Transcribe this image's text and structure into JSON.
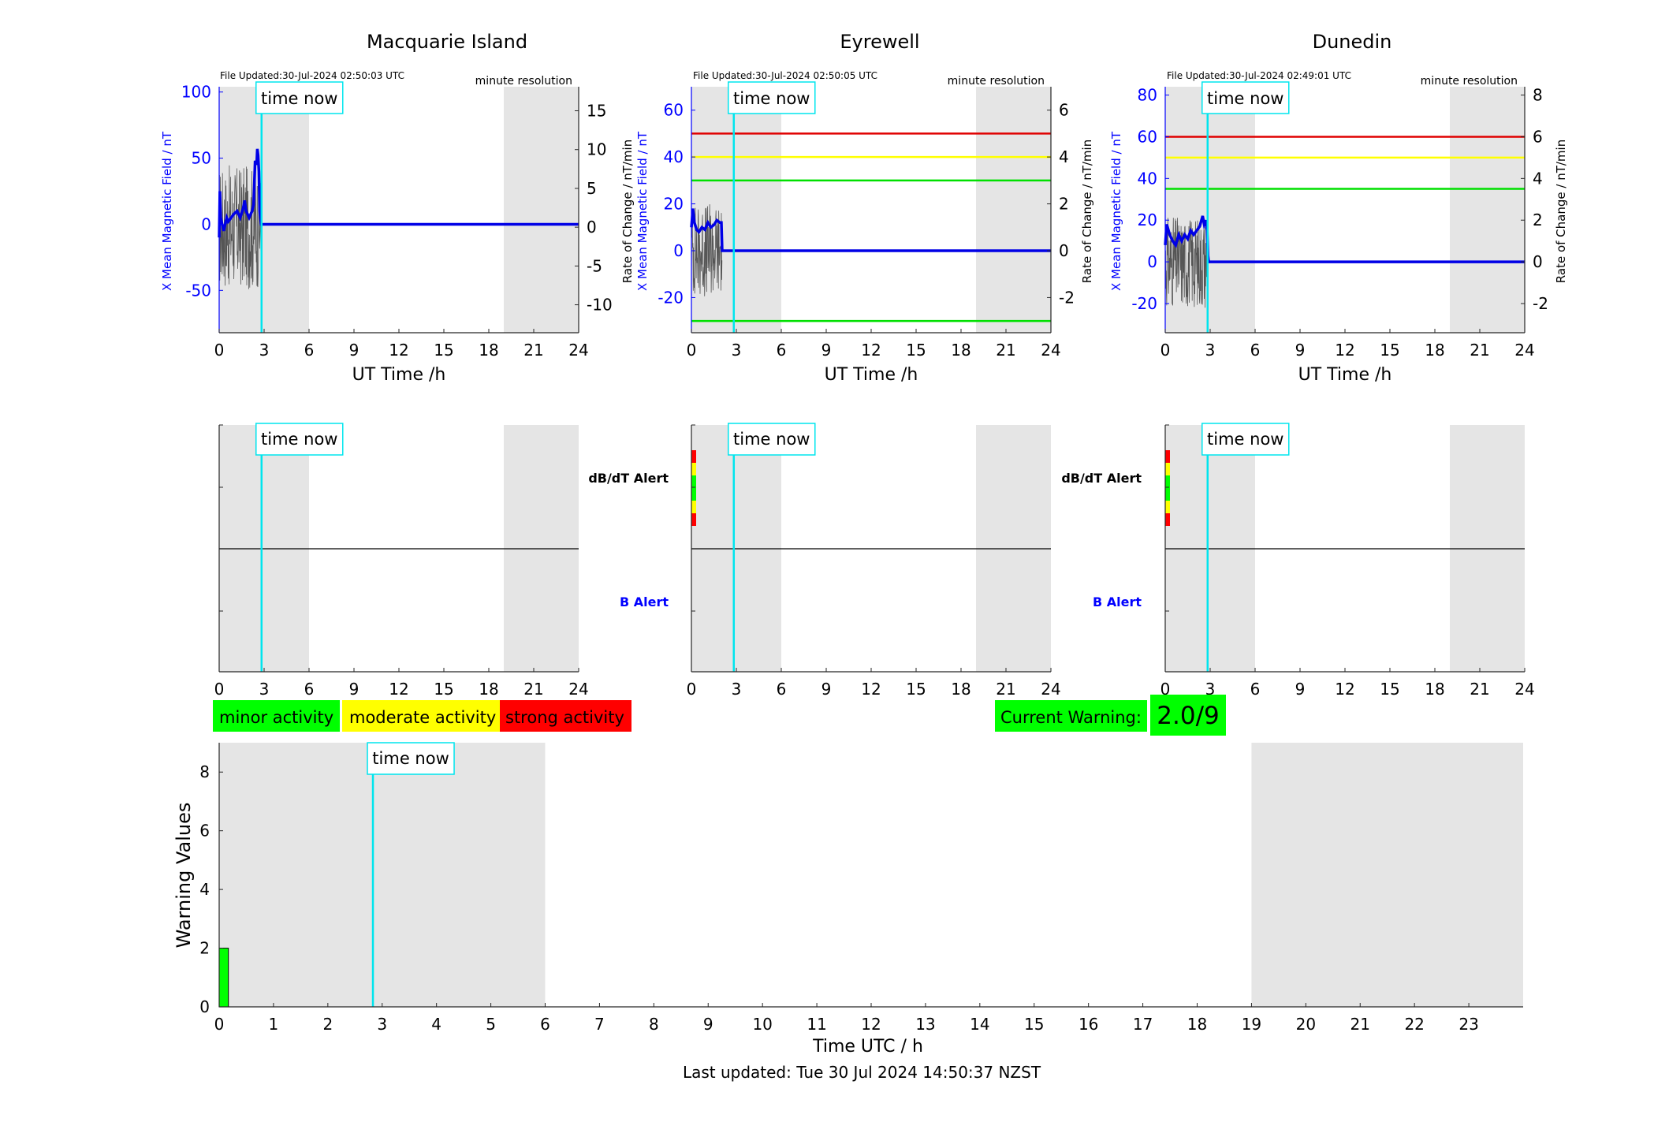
{
  "stations": [
    {
      "name": "Macquarie Island",
      "file_updated": "File Updated:30-Jul-2024 02:50:03 UTC",
      "resolution": "minute resolution",
      "left_ylabel": "X Mean Magnetic Field / nT",
      "right_ylabel": "Rate of Change / nT/min",
      "xlabel": "UT Time /h",
      "left_ylim": [
        -82,
        104
      ],
      "left_ticks": [
        -50,
        0,
        50,
        100
      ],
      "right_ylim": [
        -13.6,
        18.1
      ],
      "right_ticks": [
        -10,
        -5,
        0,
        5,
        10,
        15
      ],
      "thresholds": [],
      "has_alert_bar": false
    },
    {
      "name": "Eyrewell",
      "file_updated": "File Updated:30-Jul-2024 02:50:05 UTC",
      "resolution": "minute resolution",
      "left_ylabel": "X Mean Magnetic Field / nT",
      "right_ylabel": "Rate of Change / nT/min",
      "xlabel": "UT Time /h",
      "left_ylim": [
        -35,
        70
      ],
      "left_ticks": [
        -20,
        0,
        20,
        40,
        60
      ],
      "right_ylim": [
        -3.5,
        7
      ],
      "right_ticks": [
        -2,
        0,
        2,
        4,
        6
      ],
      "thresholds": [
        {
          "value": 50,
          "color": "#e00000"
        },
        {
          "value": 40,
          "color": "#ffff00"
        },
        {
          "value": 30,
          "color": "#00e000"
        },
        {
          "value": -30,
          "color": "#00e000"
        }
      ],
      "has_alert_bar": true
    },
    {
      "name": "Dunedin",
      "file_updated": "File Updated:30-Jul-2024 02:49:01 UTC",
      "resolution": "minute resolution",
      "left_ylabel": "X Mean Magnetic Field / nT",
      "right_ylabel": "Rate of Change / nT/min",
      "xlabel": "UT Time /h",
      "left_ylim": [
        -34,
        84
      ],
      "left_ticks": [
        -20,
        0,
        20,
        40,
        60,
        80
      ],
      "right_ylim": [
        -3.4,
        8.4
      ],
      "right_ticks": [
        -2,
        0,
        2,
        4,
        6,
        8
      ],
      "thresholds": [
        {
          "value": 60,
          "color": "#e00000"
        },
        {
          "value": 50,
          "color": "#ffff00"
        },
        {
          "value": 35,
          "color": "#00e000"
        }
      ],
      "has_alert_bar": true
    }
  ],
  "time_now_label": "time now",
  "alert_labels": {
    "dbdt": "dB/dT Alert",
    "b": "B Alert"
  },
  "legend": [
    {
      "label": "minor activity",
      "color": "#00ff00"
    },
    {
      "label": "moderate activity",
      "color": "#ffff00"
    },
    {
      "label": "strong activity",
      "color": "#ff0000"
    }
  ],
  "current_warning": {
    "label": "Current Warning:",
    "value": "2.0/9",
    "color": "#00ff00"
  },
  "last_updated": "Last updated: Tue 30 Jul 2024 14:50:37 NZST",
  "colors": {
    "field_line": "#0000e6",
    "rate_line": "#555555",
    "time_now": "#00e5ee",
    "shade": "#e5e5e5",
    "axis_blue": "#0000ff"
  },
  "chart_data": [
    {
      "type": "line",
      "title": "Macquarie Island",
      "xlabel": "UT Time /h",
      "ylabel": "X Mean Magnetic Field / nT",
      "y2label": "Rate of Change / nT/min",
      "xlim": [
        0,
        24
      ],
      "ylim": [
        -82,
        104
      ],
      "time_now_h": 2.83,
      "night_shading_h": [
        [
          0,
          6
        ],
        [
          19,
          24
        ]
      ],
      "series": [
        {
          "name": "X Mean Magnetic Field",
          "axis": "left",
          "x": [
            0,
            0.05,
            0.1,
            0.2,
            0.3,
            0.4,
            0.5,
            0.6,
            0.8,
            1.0,
            1.2,
            1.4,
            1.6,
            1.7,
            1.8,
            2.0,
            2.2,
            2.3,
            2.4,
            2.5,
            2.55,
            2.6,
            2.65,
            2.7,
            2.75,
            2.8,
            2.85,
            3,
            24
          ],
          "y": [
            -10,
            25,
            5,
            0,
            -5,
            0,
            5,
            2,
            5,
            8,
            10,
            5,
            12,
            18,
            10,
            5,
            10,
            15,
            48,
            45,
            57,
            52,
            40,
            10,
            5,
            0,
            0,
            0,
            0
          ]
        }
      ]
    },
    {
      "type": "line",
      "title": "Eyrewell",
      "xlabel": "UT Time /h",
      "ylabel": "X Mean Magnetic Field / nT",
      "y2label": "Rate of Change / nT/min",
      "xlim": [
        0,
        24
      ],
      "ylim": [
        -35,
        70
      ],
      "time_now_h": 2.83,
      "night_shading_h": [
        [
          0,
          6
        ],
        [
          19,
          24
        ]
      ],
      "thresholds_nT": [
        50,
        40,
        30,
        -30
      ],
      "series": [
        {
          "name": "X Mean Magnetic Field",
          "axis": "left",
          "x": [
            0,
            0.1,
            0.2,
            0.35,
            0.5,
            0.7,
            0.9,
            1.1,
            1.3,
            1.5,
            1.7,
            1.9,
            2.0,
            2.05,
            2.1,
            24
          ],
          "y": [
            10,
            18,
            12,
            9,
            8,
            10,
            9,
            12,
            10,
            11,
            13,
            12,
            12,
            0,
            0,
            0
          ]
        }
      ]
    },
    {
      "type": "line",
      "title": "Dunedin",
      "xlabel": "UT Time /h",
      "ylabel": "X Mean Magnetic Field / nT",
      "y2label": "Rate of Change / nT/min",
      "xlim": [
        0,
        24
      ],
      "ylim": [
        -34,
        84
      ],
      "time_now_h": 2.83,
      "night_shading_h": [
        [
          0,
          6
        ],
        [
          19,
          24
        ]
      ],
      "thresholds_nT": [
        60,
        50,
        35
      ],
      "series": [
        {
          "name": "X Mean Magnetic Field",
          "axis": "left",
          "x": [
            0,
            0.1,
            0.3,
            0.5,
            0.7,
            0.9,
            1.1,
            1.3,
            1.5,
            1.7,
            1.9,
            2.1,
            2.3,
            2.5,
            2.6,
            2.7,
            2.8,
            2.85,
            2.9,
            24
          ],
          "y": [
            8,
            18,
            13,
            10,
            8,
            13,
            10,
            13,
            11,
            15,
            13,
            15,
            17,
            22,
            18,
            20,
            15,
            3,
            0,
            0
          ]
        }
      ]
    },
    {
      "type": "bar",
      "xlabel": "Time UTC / h",
      "ylabel": "Warning Values",
      "xlim": [
        0,
        24
      ],
      "ylim": [
        0,
        9
      ],
      "time_now_h": 2.83,
      "night_shading_h": [
        [
          0,
          6
        ],
        [
          19,
          24
        ]
      ],
      "categories": [
        0
      ],
      "values": [
        2
      ],
      "bar_width_h": 0.17
    }
  ]
}
